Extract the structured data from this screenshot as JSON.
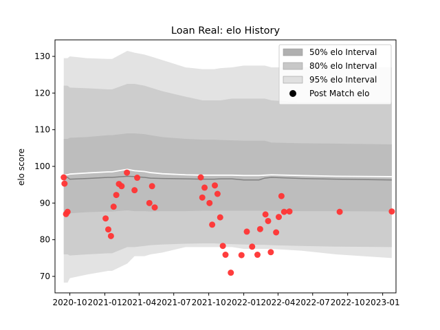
{
  "chart_data": {
    "type": "line",
    "title": "Loan Real: elo History",
    "xlabel": "",
    "ylabel": "elo score",
    "xlim": [
      "2020-08-23",
      "2023-02-05"
    ],
    "ylim": [
      65.5,
      134.5
    ],
    "yticks": [
      70,
      80,
      90,
      100,
      110,
      120,
      130
    ],
    "xticks": [
      {
        "date": "2020-10-01",
        "label": "2020-10"
      },
      {
        "date": "2021-01-01",
        "label": "2021-01"
      },
      {
        "date": "2021-04-01",
        "label": "2021-04"
      },
      {
        "date": "2021-07-01",
        "label": "2021-07"
      },
      {
        "date": "2021-10-01",
        "label": "2021-10"
      },
      {
        "date": "2022-01-01",
        "label": "2022-01"
      },
      {
        "date": "2022-04-01",
        "label": "2022-04"
      },
      {
        "date": "2022-07-01",
        "label": "2022-07"
      },
      {
        "date": "2022-10-01",
        "label": "2022-10"
      },
      {
        "date": "2023-01-01",
        "label": "2023-01"
      }
    ],
    "grid": false,
    "legend_position": "top-right",
    "legend": [
      {
        "label": "50% elo Interval",
        "kind": "band",
        "color": "#b0b0b0"
      },
      {
        "label": "80% elo Interval",
        "kind": "band",
        "color": "#c8c8c8"
      },
      {
        "label": "95% elo Interval",
        "kind": "band",
        "color": "#e0e0e0"
      },
      {
        "label": "Post Match elo",
        "kind": "marker",
        "color": "#000000"
      }
    ],
    "colors": {
      "band95": "#e3e3e3",
      "band80": "#cdcdcd",
      "band50": "#bdbdbd",
      "median_line": "#808080",
      "mean_line": "#ffffff",
      "points": "#ff3333"
    },
    "bands": {
      "x": [
        "2020-09-15",
        "2020-09-25",
        "2020-10-01",
        "2020-11-15",
        "2021-01-10",
        "2021-01-20",
        "2021-03-01",
        "2021-03-20",
        "2021-04-15",
        "2021-05-01",
        "2021-06-01",
        "2021-08-01",
        "2021-09-15",
        "2021-10-15",
        "2021-11-01",
        "2021-12-01",
        "2022-01-01",
        "2022-02-10",
        "2022-02-25",
        "2022-03-15",
        "2022-06-01",
        "2022-09-01",
        "2023-01-25"
      ],
      "q95_low": [
        68.3,
        68.3,
        69.5,
        70.5,
        71.5,
        71.5,
        73.5,
        75.5,
        75.5,
        76.0,
        76.5,
        78.0,
        78.0,
        78.0,
        78.0,
        78.0,
        77.5,
        77.5,
        77.5,
        77.5,
        77.0,
        76.0,
        75.0
      ],
      "q80_low": [
        76.0,
        76.0,
        75.7,
        76.0,
        76.3,
        76.3,
        78.0,
        78.0,
        78.3,
        78.5,
        78.7,
        78.9,
        79.0,
        79.0,
        78.9,
        78.8,
        78.7,
        78.6,
        78.6,
        78.5,
        78.3,
        78.1,
        78.0
      ],
      "q50_low": [
        87.0,
        87.0,
        87.2,
        87.5,
        87.7,
        87.7,
        88.0,
        87.8,
        87.8,
        87.7,
        87.8,
        87.8,
        87.9,
        87.9,
        87.9,
        87.9,
        87.9,
        87.9,
        87.9,
        87.9,
        87.8,
        87.8,
        87.7
      ],
      "q50_high": [
        107.5,
        107.5,
        107.8,
        108.0,
        108.5,
        108.5,
        109.0,
        109.0,
        108.8,
        108.5,
        108.0,
        107.5,
        107.3,
        107.3,
        107.2,
        107.1,
        107.0,
        107.0,
        107.0,
        106.5,
        106.3,
        106.2,
        106.0
      ],
      "q80_high": [
        122.0,
        122.0,
        121.5,
        121.3,
        121.0,
        121.0,
        122.5,
        122.5,
        122.0,
        121.5,
        120.5,
        119.0,
        118.0,
        118.0,
        118.0,
        118.5,
        118.5,
        118.5,
        118.5,
        118.0,
        117.5,
        117.5,
        117.5
      ],
      "q95_high": [
        129.5,
        129.5,
        130.0,
        129.5,
        129.3,
        129.3,
        131.5,
        131.0,
        130.5,
        130.0,
        129.0,
        127.0,
        126.5,
        126.5,
        126.8,
        127.0,
        127.5,
        127.5,
        127.5,
        127.0,
        127.0,
        127.0,
        127.0
      ],
      "median": [
        97.0,
        97.0,
        96.5,
        96.7,
        97.0,
        97.0,
        97.3,
        97.2,
        97.0,
        96.8,
        96.7,
        96.6,
        96.5,
        96.5,
        96.6,
        96.6,
        96.3,
        96.3,
        96.8,
        97.0,
        96.7,
        96.5,
        96.3
      ],
      "mean": [
        97.7,
        97.7,
        97.9,
        98.2,
        98.5,
        98.5,
        99.2,
        98.8,
        98.6,
        98.3,
        98.0,
        97.7,
        97.6,
        97.6,
        97.6,
        97.6,
        97.5,
        97.5,
        97.6,
        97.7,
        97.5,
        97.3,
        97.2
      ]
    },
    "points": {
      "x": [
        "2020-09-15",
        "2020-09-17",
        "2020-09-21",
        "2020-09-25",
        "2021-01-03",
        "2021-01-10",
        "2021-01-17",
        "2021-01-24",
        "2021-01-31",
        "2021-02-07",
        "2021-02-14",
        "2021-02-28",
        "2021-03-20",
        "2021-03-27",
        "2021-04-28",
        "2021-05-05",
        "2021-05-12",
        "2021-09-10",
        "2021-09-14",
        "2021-09-20",
        "2021-10-03",
        "2021-10-10",
        "2021-10-17",
        "2021-10-24",
        "2021-10-31",
        "2021-11-07",
        "2021-11-14",
        "2021-11-28",
        "2021-12-26",
        "2022-01-09",
        "2022-01-23",
        "2022-02-06",
        "2022-02-13",
        "2022-02-27",
        "2022-03-06",
        "2022-03-13",
        "2022-03-27",
        "2022-04-03",
        "2022-04-10",
        "2022-04-17",
        "2022-05-01",
        "2022-09-10",
        "2023-01-25"
      ],
      "y": [
        97.0,
        95.3,
        87.0,
        87.6,
        85.8,
        82.8,
        81.0,
        89.0,
        92.2,
        95.2,
        94.6,
        98.3,
        93.5,
        96.9,
        90.0,
        94.6,
        88.8,
        97.0,
        91.5,
        94.2,
        90.0,
        84.1,
        94.8,
        92.5,
        86.1,
        78.3,
        75.9,
        71.0,
        75.8,
        82.2,
        78.1,
        75.9,
        82.9,
        86.9,
        85.1,
        76.6,
        82.0,
        86.2,
        91.9,
        87.6,
        87.7,
        87.6,
        87.7
      ]
    }
  }
}
